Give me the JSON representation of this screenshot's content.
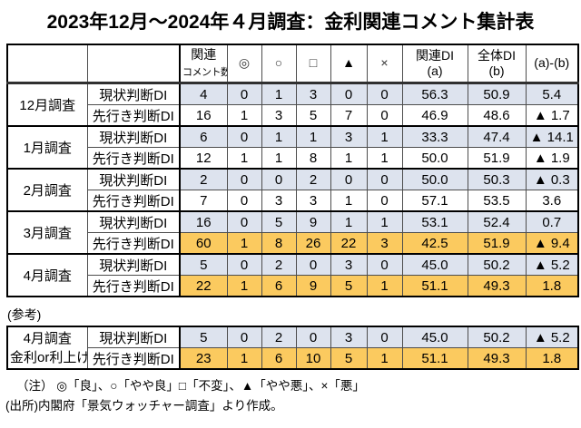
{
  "title": "2023年12月～2024年４月調査：金利関連コメント集計表",
  "header": {
    "comment_count_line1": "関連",
    "comment_count_line2": "コメント数",
    "symbols": [
      "◎",
      "○",
      "□",
      "▲",
      "×"
    ],
    "related_di_line1": "関連DI",
    "related_di_line2": "(a)",
    "overall_di_line1": "全体DI",
    "overall_di_line2": "(b)",
    "diff": "(a)-(b)"
  },
  "sections": [
    {
      "month": "12月調査",
      "rows": [
        {
          "label": "現状判断DI",
          "style": "shaded",
          "values": [
            "4",
            "0",
            "1",
            "3",
            "0",
            "0",
            "56.3",
            "50.9",
            "5.4"
          ]
        },
        {
          "label": "先行き判断DI",
          "style": "plain",
          "values": [
            "16",
            "1",
            "3",
            "5",
            "7",
            "0",
            "46.9",
            "48.6",
            "▲ 1.7"
          ]
        }
      ]
    },
    {
      "month": "1月調査",
      "rows": [
        {
          "label": "現状判断DI",
          "style": "shaded",
          "values": [
            "6",
            "0",
            "1",
            "1",
            "3",
            "1",
            "33.3",
            "47.4",
            "▲ 14.1"
          ]
        },
        {
          "label": "先行き判断DI",
          "style": "plain",
          "values": [
            "12",
            "1",
            "1",
            "8",
            "1",
            "1",
            "50.0",
            "51.9",
            "▲ 1.9"
          ]
        }
      ]
    },
    {
      "month": "2月調査",
      "rows": [
        {
          "label": "現状判断DI",
          "style": "shaded",
          "values": [
            "2",
            "0",
            "0",
            "2",
            "0",
            "0",
            "50.0",
            "50.3",
            "▲ 0.3"
          ]
        },
        {
          "label": "先行き判断DI",
          "style": "plain",
          "values": [
            "7",
            "0",
            "3",
            "3",
            "1",
            "0",
            "57.1",
            "53.5",
            "3.6"
          ]
        }
      ]
    },
    {
      "month": "3月調査",
      "rows": [
        {
          "label": "現状判断DI",
          "style": "shaded",
          "values": [
            "16",
            "0",
            "5",
            "9",
            "1",
            "1",
            "53.1",
            "52.4",
            "0.7"
          ]
        },
        {
          "label": "先行き判断DI",
          "style": "highlight",
          "values": [
            "60",
            "1",
            "8",
            "26",
            "22",
            "3",
            "42.5",
            "51.9",
            "▲ 9.4"
          ]
        }
      ]
    },
    {
      "month": "4月調査",
      "rows": [
        {
          "label": "現状判断DI",
          "style": "shaded",
          "values": [
            "5",
            "0",
            "2",
            "0",
            "3",
            "0",
            "45.0",
            "50.2",
            "▲ 5.2"
          ]
        },
        {
          "label": "先行き判断DI",
          "style": "highlight",
          "values": [
            "22",
            "1",
            "6",
            "9",
            "5",
            "1",
            "51.1",
            "49.3",
            "1.8"
          ]
        }
      ]
    }
  ],
  "reference": {
    "label": "(参考)",
    "month_line1": "4月調査",
    "month_line2": "金利or利上げ",
    "rows": [
      {
        "label": "現状判断DI",
        "style": "shaded",
        "values": [
          "5",
          "0",
          "2",
          "0",
          "3",
          "0",
          "45.0",
          "50.2",
          "▲ 5.2"
        ]
      },
      {
        "label": "先行き判断DI",
        "style": "highlight",
        "values": [
          "23",
          "1",
          "6",
          "10",
          "5",
          "1",
          "51.1",
          "49.3",
          "1.8"
        ]
      }
    ]
  },
  "notes": {
    "note1": "（注）  ◎「良」、○「やや良」□「不変」、▲「やや悪」、×「悪」",
    "note2": "(出所)内閣府「景気ウォッチャー調査」より作成。"
  },
  "colors": {
    "shaded": "#dde3ee",
    "highlight": "#fbca5f"
  }
}
